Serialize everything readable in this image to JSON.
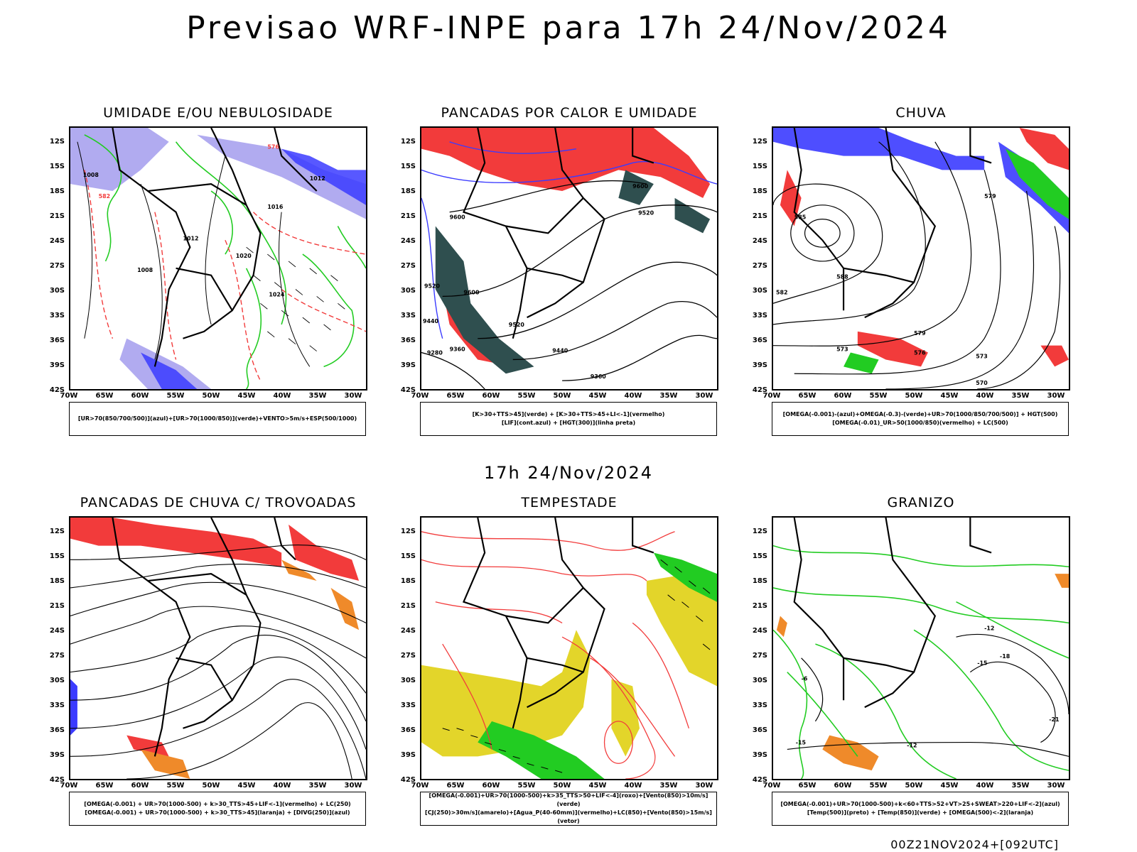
{
  "title": "Previsao WRF-INPE  para 17h 24/Nov/2024",
  "subtitle": "17h 24/Nov/2024",
  "footer": "00Z21NOV2024+[092UTC]",
  "lat_labels": [
    "12S",
    "15S",
    "18S",
    "21S",
    "24S",
    "27S",
    "30S",
    "33S",
    "36S",
    "39S",
    "42S"
  ],
  "lon_labels": [
    "70W",
    "65W",
    "60W",
    "55W",
    "50W",
    "45W",
    "40W",
    "35W",
    "30W"
  ],
  "colors": {
    "blue": "#3b3bff",
    "lightblue": "#a9a2ee",
    "green": "#22cc22",
    "red": "#f23b3b",
    "darkteal": "#2f4f4f",
    "yellow": "#e3d52a",
    "orange": "#ef8a2a",
    "black": "#000000"
  },
  "panels": [
    {
      "title": "UMIDADE E/OU NEBULOSIDADE",
      "legend": [
        "[UR>70(850/700/500)](azul)+[UR>70(1000/850)](verde)+VENTO>5m/s+ESP(500/1000)"
      ],
      "contour_labels": [
        "1008",
        "1012",
        "1016",
        "1020",
        "1024",
        "1008",
        "1012",
        "576",
        "582"
      ]
    },
    {
      "title": "PANCADAS POR CALOR E UMIDADE",
      "legend": [
        "[K>30+TTS>45](verde) + [K>30+TTS>45+LI<-1](vermelho)",
        "[LIF](cont.azul) + [HGT(300)](linha preta)"
      ],
      "contour_labels": [
        "9600",
        "9520",
        "9600",
        "9520",
        "9600",
        "9520",
        "9440",
        "9360",
        "9280",
        "9440",
        "9360"
      ]
    },
    {
      "title": "CHUVA",
      "legend": [
        "[OMEGA(-0.001)-(azul)+OMEGA(-0.3)-(verde)+UR>70(1000/850/700/500)] + HGT(500)",
        "[OMEGA(-0.01)_UR>50(1000/850)(vermelho) + LC(500)"
      ],
      "contour_labels": [
        "579",
        "585",
        "588",
        "582",
        "579",
        "573",
        "576",
        "573",
        "570"
      ]
    },
    {
      "title": "PANCADAS DE CHUVA C/ TROVOADAS",
      "legend": [
        "[OMEGA(-0.001) + UR>70(1000-500) + k>30_TTS>45+LIF<-1](vermelho) + LC(250)",
        "[OMEGA(-0.001) + UR>70(1000-500) + k>30_TTS>45](laranja) + [DIVG(250)](azul)"
      ],
      "contour_labels": []
    },
    {
      "title": "TEMPESTADE",
      "legend": [
        "[OMEGA(-0.001)+UR>70(1000-500)+k>35_TTS>50+LIF<-4](roxo)+[Vento(850)>10m/s](verde)",
        "[CJ(250)>30m/s](amarelo)+[Agua_P(40-60mm)](vermelho)+LC(850)+[Vento(850)>15m/s](vetor)"
      ],
      "contour_labels": []
    },
    {
      "title": "GRANIZO",
      "legend": [
        "[OMEGA(-0.001)+UR>70(1000-500)+k<60+TTS>52+VT>25+SWEAT>220+LIF<-2](azul)",
        "[Temp(500)](preto) + [Temp(850)](verde) + [OMEGA(500)<-2](laranja)"
      ],
      "contour_labels": [
        "-12",
        "-15",
        "-18",
        "-21",
        "-6",
        "-15",
        "-12"
      ]
    }
  ]
}
